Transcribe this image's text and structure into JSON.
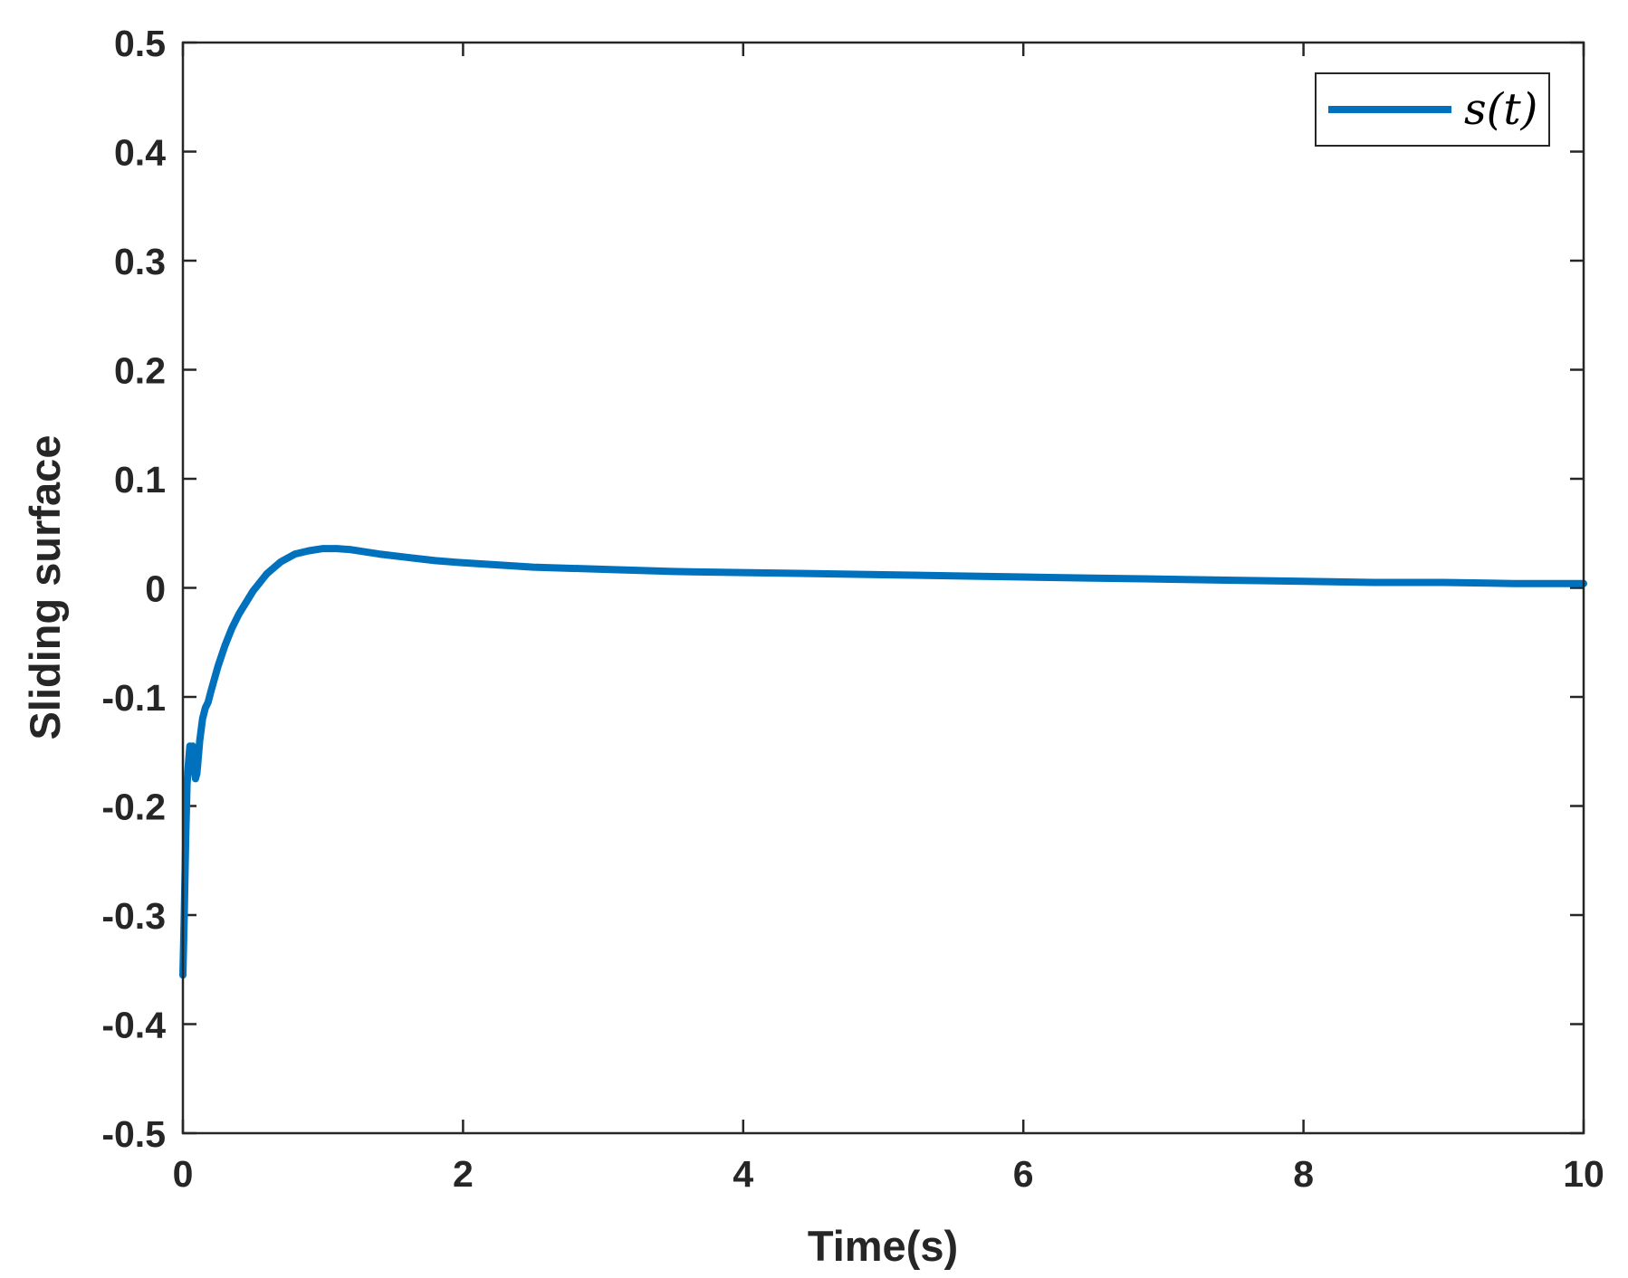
{
  "chart_data": {
    "type": "line",
    "title": "",
    "xlabel": "Time(s)",
    "ylabel": "Sliding surface",
    "xlim": [
      0,
      10
    ],
    "ylim": [
      -0.5,
      0.5
    ],
    "x_ticks": [
      0,
      2,
      4,
      6,
      8,
      10
    ],
    "y_ticks": [
      0.5,
      0.4,
      0.3,
      0.2,
      0.1,
      0,
      -0.1,
      -0.2,
      -0.3,
      -0.4,
      -0.5
    ],
    "x_tick_labels": [
      "0",
      "2",
      "4",
      "6",
      "8",
      "10"
    ],
    "y_tick_labels": [
      "0.5",
      "0.4",
      "0.3",
      "0.2",
      "0.1",
      "0",
      "-0.1",
      "-0.2",
      "-0.3",
      "-0.4",
      "-0.5"
    ],
    "grid": false,
    "legend_position": "top-right",
    "series": [
      {
        "name": "s(t)",
        "color": "#0072BD",
        "x": [
          0,
          0.01,
          0.02,
          0.03,
          0.04,
          0.05,
          0.06,
          0.07,
          0.08,
          0.09,
          0.1,
          0.12,
          0.14,
          0.16,
          0.18,
          0.2,
          0.25,
          0.3,
          0.35,
          0.4,
          0.5,
          0.6,
          0.7,
          0.8,
          0.9,
          1.0,
          1.1,
          1.2,
          1.4,
          1.6,
          1.8,
          2.0,
          2.5,
          3.0,
          3.5,
          4.0,
          4.5,
          5.0,
          5.5,
          6.0,
          6.5,
          7.0,
          7.5,
          8.0,
          8.5,
          9.0,
          9.5,
          10.0
        ],
        "y": [
          -0.355,
          -0.3,
          -0.23,
          -0.18,
          -0.16,
          -0.145,
          -0.155,
          -0.145,
          -0.165,
          -0.175,
          -0.17,
          -0.14,
          -0.12,
          -0.11,
          -0.105,
          -0.095,
          -0.072,
          -0.053,
          -0.037,
          -0.024,
          -0.003,
          0.013,
          0.024,
          0.031,
          0.034,
          0.036,
          0.036,
          0.035,
          0.031,
          0.028,
          0.025,
          0.023,
          0.019,
          0.017,
          0.015,
          0.014,
          0.013,
          0.012,
          0.011,
          0.01,
          0.009,
          0.008,
          0.007,
          0.006,
          0.005,
          0.005,
          0.004,
          0.004
        ]
      }
    ]
  }
}
